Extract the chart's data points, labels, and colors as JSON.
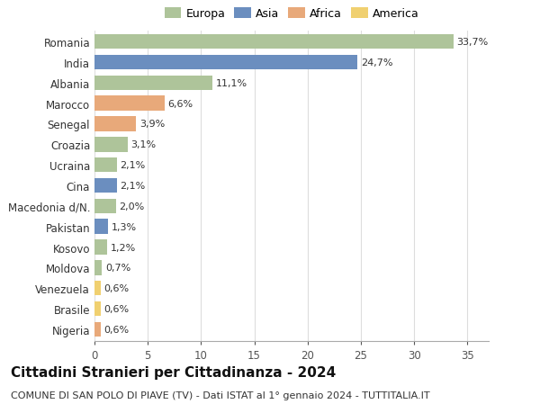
{
  "countries": [
    "Romania",
    "India",
    "Albania",
    "Marocco",
    "Senegal",
    "Croazia",
    "Ucraina",
    "Cina",
    "Macedonia d/N.",
    "Pakistan",
    "Kosovo",
    "Moldova",
    "Venezuela",
    "Brasile",
    "Nigeria"
  ],
  "values": [
    33.7,
    24.7,
    11.1,
    6.6,
    3.9,
    3.1,
    2.1,
    2.1,
    2.0,
    1.3,
    1.2,
    0.7,
    0.6,
    0.6,
    0.6
  ],
  "labels": [
    "33,7%",
    "24,7%",
    "11,1%",
    "6,6%",
    "3,9%",
    "3,1%",
    "2,1%",
    "2,1%",
    "2,0%",
    "1,3%",
    "1,2%",
    "0,7%",
    "0,6%",
    "0,6%",
    "0,6%"
  ],
  "continents": [
    "Europa",
    "Asia",
    "Europa",
    "Africa",
    "Africa",
    "Europa",
    "Europa",
    "Asia",
    "Europa",
    "Asia",
    "Europa",
    "Europa",
    "America",
    "America",
    "Africa"
  ],
  "continent_colors": {
    "Europa": "#aec49a",
    "Asia": "#6b8ebf",
    "Africa": "#e8a97a",
    "America": "#f0d070"
  },
  "legend_order": [
    "Europa",
    "Asia",
    "Africa",
    "America"
  ],
  "title": "Cittadini Stranieri per Cittadinanza - 2024",
  "subtitle": "COMUNE DI SAN POLO DI PIAVE (TV) - Dati ISTAT al 1° gennaio 2024 - TUTTITALIA.IT",
  "xlim": [
    0,
    37
  ],
  "xticks": [
    0,
    5,
    10,
    15,
    20,
    25,
    30,
    35
  ],
  "background_color": "#ffffff",
  "bar_height": 0.72,
  "grid_color": "#dddddd",
  "label_fontsize": 8.0,
  "ytick_fontsize": 8.5,
  "xtick_fontsize": 8.5,
  "title_fontsize": 11,
  "subtitle_fontsize": 8.0
}
